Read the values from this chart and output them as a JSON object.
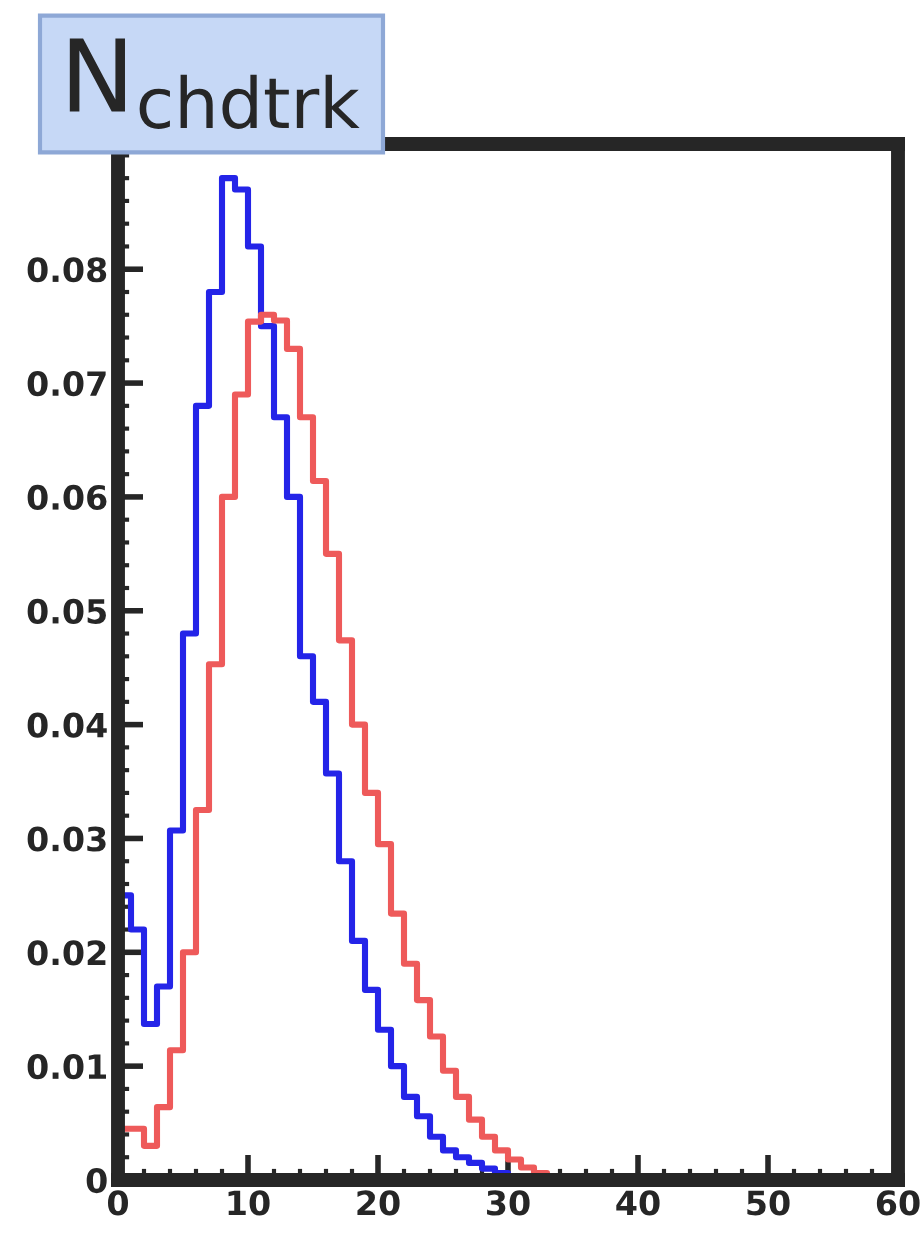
{
  "chart_data": {
    "type": "histogram",
    "title": "N$_{chdtrk}$",
    "bins": [
      0,
      1,
      2,
      3,
      4,
      5,
      6,
      7,
      8,
      9,
      10,
      11,
      12,
      13,
      14,
      15,
      16,
      17,
      18,
      19,
      20,
      21,
      22,
      23,
      24,
      25,
      26,
      27,
      28,
      29,
      30,
      31,
      32,
      33,
      34,
      35,
      36,
      37,
      38,
      39,
      40,
      41,
      42,
      43,
      44,
      45,
      46,
      47,
      48,
      49,
      50,
      51,
      52,
      53,
      54,
      55,
      56,
      57,
      58,
      59,
      60
    ],
    "series": [
      {
        "color": "#2424e8",
        "values": [
          0.025,
          0.022,
          0.0137,
          0.017,
          0.0307,
          0.048,
          0.068,
          0.078,
          0.088,
          0.087,
          0.082,
          0.075,
          0.067,
          0.06,
          0.046,
          0.042,
          0.0357,
          0.028,
          0.021,
          0.0167,
          0.0132,
          0.01,
          0.0073,
          0.0056,
          0.0038,
          0.0026,
          0.002,
          0.0015,
          0.001,
          0.0006,
          0.0003,
          0.0002,
          0.0001,
          0,
          0,
          0,
          0,
          0,
          0,
          0,
          0,
          0,
          0,
          0,
          0,
          0,
          0,
          0,
          0,
          0,
          0,
          0,
          0,
          0,
          0,
          0,
          0,
          0,
          0,
          0
        ]
      },
      {
        "color": "#ee5a5a",
        "values": [
          0.0045,
          0.0045,
          0.003,
          0.0064,
          0.0114,
          0.02,
          0.0325,
          0.0453,
          0.06,
          0.069,
          0.0754,
          0.076,
          0.0755,
          0.073,
          0.067,
          0.0614,
          0.055,
          0.0474,
          0.04,
          0.034,
          0.0295,
          0.0234,
          0.019,
          0.0158,
          0.0126,
          0.0096,
          0.0073,
          0.0053,
          0.0038,
          0.0026,
          0.0018,
          0.0011,
          0.0006,
          0.0003,
          0.0001,
          0,
          0,
          0,
          0,
          0,
          0,
          0,
          0,
          0,
          0,
          0,
          0,
          0,
          0,
          0,
          0,
          0,
          0,
          0,
          0,
          0,
          0,
          0,
          0,
          0
        ]
      }
    ],
    "xlim": [
      0,
      60
    ],
    "xticks": [
      0,
      10,
      20,
      30,
      40,
      50,
      60
    ],
    "ylim": [
      0,
      0.091
    ],
    "yticks": [
      0,
      0.01,
      0.02,
      0.03,
      0.04,
      0.05,
      0.06,
      0.07,
      0.08
    ],
    "grid": false,
    "legend": false
  }
}
